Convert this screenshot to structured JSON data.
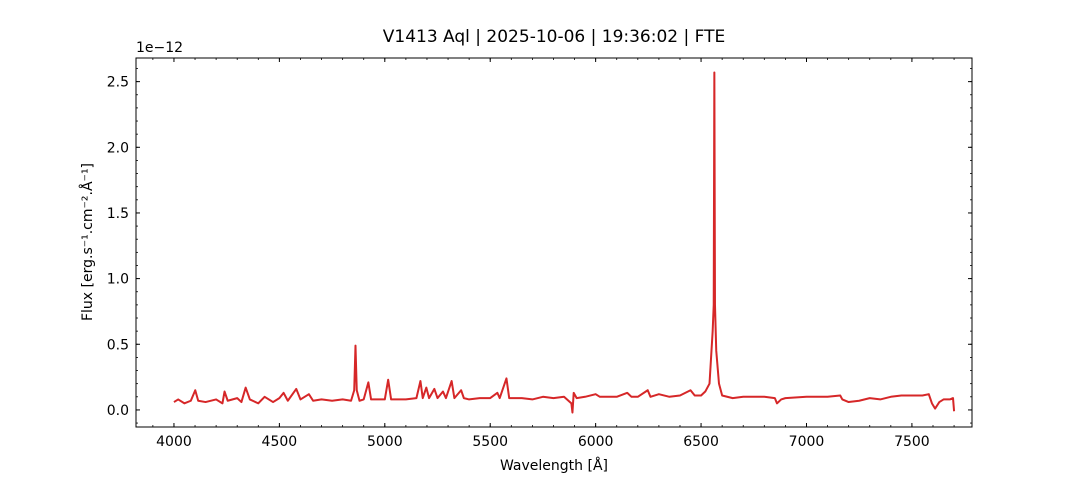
{
  "chart_data": {
    "type": "line",
    "title": "V1413 Aql | 2025-10-06 | 19:36:02 | FTE",
    "xlabel": "Wavelength [Å]",
    "ylabel": "Flux [erg.s⁻¹.cm⁻².Å⁻¹]",
    "y_offset_text": "1e−12",
    "color": "#d62728",
    "xlim": [
      3820,
      7785
    ],
    "ylim": [
      -0.13,
      2.68
    ],
    "xticks": [
      4000,
      4500,
      5000,
      5500,
      6000,
      6500,
      7000,
      7500
    ],
    "yticks": [
      {
        "value": 0,
        "label": "0.0"
      },
      0.5,
      {
        "value": 1,
        "label": "1.0"
      },
      1.5,
      {
        "value": 2,
        "label": "2.0"
      },
      2.5
    ],
    "xminorticks": [
      3900,
      4000,
      4100,
      4200,
      4300,
      4400,
      4500,
      4600,
      4700,
      4800,
      4900,
      5000,
      5100,
      5200,
      5300,
      5400,
      5500,
      5600,
      5700,
      5800,
      5900,
      6000,
      6100,
      6200,
      6300,
      6400,
      6500,
      6600,
      6700,
      6800,
      6900,
      7000,
      7100,
      7200,
      7300,
      7400,
      7500,
      7600,
      7700
    ],
    "yminorticks": [
      -0.1,
      0,
      0.1,
      0.2,
      0.3,
      0.4,
      0.5,
      0.6,
      0.7,
      0.8,
      0.9,
      1,
      1.1,
      1.2,
      1.3,
      1.4,
      1.5,
      1.6,
      1.7,
      1.8,
      1.9,
      2,
      2.1,
      2.2,
      2.3,
      2.4,
      2.5,
      2.6
    ],
    "x": [
      4000,
      4020,
      4050,
      4080,
      4101,
      4115,
      4150,
      4200,
      4230,
      4240,
      4255,
      4300,
      4320,
      4340,
      4360,
      4400,
      4430,
      4470,
      4500,
      4520,
      4540,
      4580,
      4600,
      4640,
      4660,
      4700,
      4750,
      4800,
      4840,
      4855,
      4861,
      4867,
      4880,
      4900,
      4922,
      4935,
      4970,
      5000,
      5016,
      5030,
      5100,
      5150,
      5169,
      5180,
      5197,
      5210,
      5235,
      5250,
      5276,
      5290,
      5317,
      5330,
      5362,
      5375,
      5400,
      5450,
      5500,
      5534,
      5545,
      5577,
      5590,
      5650,
      5700,
      5750,
      5800,
      5850,
      5885,
      5890,
      5896,
      5910,
      5950,
      6000,
      6020,
      6100,
      6150,
      6170,
      6200,
      6247,
      6260,
      6300,
      6350,
      6400,
      6450,
      6470,
      6500,
      6520,
      6540,
      6555,
      6560,
      6563,
      6566,
      6572,
      6585,
      6600,
      6650,
      6700,
      6750,
      6800,
      6850,
      6860,
      6880,
      6900,
      7000,
      7100,
      7160,
      7170,
      7200,
      7250,
      7300,
      7350,
      7400,
      7450,
      7500,
      7550,
      7580,
      7595,
      7610,
      7630,
      7650,
      7680,
      7695,
      7700
    ],
    "values": [
      0.06,
      0.08,
      0.05,
      0.07,
      0.15,
      0.07,
      0.06,
      0.08,
      0.05,
      0.14,
      0.07,
      0.09,
      0.06,
      0.17,
      0.08,
      0.05,
      0.1,
      0.06,
      0.09,
      0.13,
      0.07,
      0.16,
      0.08,
      0.12,
      0.07,
      0.08,
      0.07,
      0.08,
      0.07,
      0.15,
      0.49,
      0.15,
      0.07,
      0.08,
      0.21,
      0.08,
      0.08,
      0.08,
      0.23,
      0.08,
      0.08,
      0.09,
      0.22,
      0.09,
      0.17,
      0.09,
      0.16,
      0.09,
      0.14,
      0.09,
      0.22,
      0.09,
      0.15,
      0.09,
      0.08,
      0.09,
      0.09,
      0.13,
      0.09,
      0.24,
      0.09,
      0.09,
      0.08,
      0.1,
      0.09,
      0.1,
      0.05,
      -0.02,
      0.13,
      0.09,
      0.1,
      0.12,
      0.1,
      0.1,
      0.13,
      0.1,
      0.1,
      0.15,
      0.1,
      0.12,
      0.1,
      0.11,
      0.15,
      0.11,
      0.11,
      0.14,
      0.2,
      0.6,
      0.8,
      2.57,
      0.8,
      0.45,
      0.2,
      0.11,
      0.09,
      0.1,
      0.1,
      0.1,
      0.09,
      0.05,
      0.08,
      0.09,
      0.1,
      0.1,
      0.11,
      0.08,
      0.06,
      0.07,
      0.09,
      0.08,
      0.1,
      0.11,
      0.11,
      0.11,
      0.12,
      0.05,
      0.01,
      0.06,
      0.08,
      0.08,
      0.09,
      -0.01
    ]
  }
}
